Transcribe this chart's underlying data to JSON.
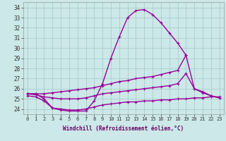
{
  "xlabel": "Windchill (Refroidissement éolien,°C)",
  "bg_color": "#cce8e8",
  "grid_color": "#aacccc",
  "line_color": "#990099",
  "ylim": [
    23.5,
    34.5
  ],
  "xlim": [
    -0.5,
    23.5
  ],
  "yticks": [
    24,
    25,
    26,
    27,
    28,
    29,
    30,
    31,
    32,
    33,
    34
  ],
  "xticks": [
    0,
    1,
    2,
    3,
    4,
    5,
    6,
    7,
    8,
    9,
    10,
    11,
    12,
    13,
    14,
    15,
    16,
    17,
    18,
    19,
    20,
    21,
    22,
    23
  ],
  "line1_x": [
    0,
    1,
    2,
    3,
    4,
    5,
    6,
    7,
    8,
    9,
    10,
    11,
    12,
    13,
    14,
    15,
    16,
    17,
    18,
    19
  ],
  "line1_y": [
    25.5,
    25.5,
    25.0,
    24.1,
    23.9,
    23.8,
    23.8,
    23.8,
    24.8,
    26.5,
    29.0,
    31.1,
    33.0,
    33.7,
    33.8,
    33.3,
    32.5,
    31.5,
    30.5,
    29.3
  ],
  "line2_x": [
    0,
    1,
    2,
    3,
    4,
    5,
    6,
    7,
    8,
    9,
    10,
    11,
    12,
    13,
    14,
    15,
    16,
    17,
    18,
    19,
    20,
    21,
    22,
    23
  ],
  "line2_y": [
    25.5,
    25.5,
    25.5,
    25.6,
    25.7,
    25.8,
    25.9,
    26.0,
    26.1,
    26.3,
    26.5,
    26.7,
    26.8,
    27.0,
    27.1,
    27.2,
    27.4,
    27.6,
    27.8,
    29.3,
    26.0,
    25.7,
    25.3,
    25.1
  ],
  "line3_x": [
    0,
    1,
    2,
    3,
    4,
    5,
    6,
    7,
    8,
    9,
    10,
    11,
    12,
    13,
    14,
    15,
    16,
    17,
    18,
    19,
    20,
    21,
    22,
    23
  ],
  "line3_y": [
    25.5,
    25.4,
    25.2,
    25.1,
    25.0,
    25.0,
    25.0,
    25.1,
    25.3,
    25.5,
    25.6,
    25.7,
    25.8,
    25.9,
    26.0,
    26.1,
    26.2,
    26.3,
    26.5,
    27.5,
    26.0,
    25.6,
    25.3,
    25.1
  ],
  "line4_x": [
    0,
    1,
    2,
    3,
    4,
    5,
    6,
    7,
    8,
    9,
    10,
    11,
    12,
    13,
    14,
    15,
    16,
    17,
    18,
    19,
    20,
    21,
    22,
    23
  ],
  "line4_y": [
    25.3,
    25.2,
    24.8,
    24.1,
    24.0,
    23.9,
    23.9,
    24.0,
    24.2,
    24.4,
    24.5,
    24.6,
    24.7,
    24.7,
    24.8,
    24.8,
    24.9,
    24.9,
    25.0,
    25.0,
    25.1,
    25.1,
    25.2,
    25.2
  ]
}
